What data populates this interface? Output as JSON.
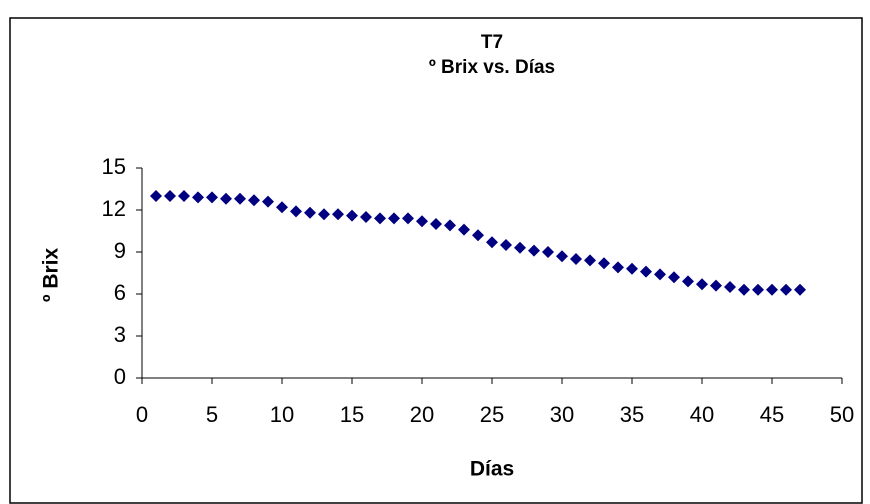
{
  "chart_data": {
    "type": "scatter",
    "title": "T7",
    "subtitle": "º Brix  vs. Días",
    "x_label": "Días",
    "y_label": "º Brix",
    "series": [
      {
        "name": "T7",
        "color": "#000080",
        "x": [
          1,
          2,
          3,
          4,
          5,
          6,
          7,
          8,
          9,
          10,
          11,
          12,
          13,
          14,
          15,
          16,
          17,
          18,
          19,
          20,
          21,
          22,
          23,
          24,
          25,
          26,
          27,
          28,
          29,
          30,
          31,
          32,
          33,
          34,
          35,
          36,
          37,
          38,
          39,
          40,
          41,
          42,
          43,
          44,
          45,
          46,
          47
        ],
        "values": [
          13.0,
          13.0,
          13.0,
          12.9,
          12.9,
          12.8,
          12.8,
          12.7,
          12.6,
          12.2,
          11.9,
          11.8,
          11.7,
          11.7,
          11.6,
          11.5,
          11.4,
          11.4,
          11.4,
          11.2,
          11.0,
          10.9,
          10.6,
          10.2,
          9.7,
          9.5,
          9.3,
          9.1,
          9.0,
          8.7,
          8.5,
          8.4,
          8.2,
          7.9,
          7.8,
          7.6,
          7.4,
          7.2,
          6.9,
          6.7,
          6.6,
          6.5,
          6.3,
          6.3,
          6.3,
          6.3,
          6.3
        ]
      }
    ],
    "xlim": [
      0,
      50
    ],
    "xticks": [
      0,
      5,
      10,
      15,
      20,
      25,
      30,
      35,
      40,
      45,
      50
    ],
    "ylim": [
      0,
      15
    ],
    "yticks": [
      0,
      3,
      6,
      9,
      12,
      15
    ],
    "grid": false,
    "legend": false
  }
}
